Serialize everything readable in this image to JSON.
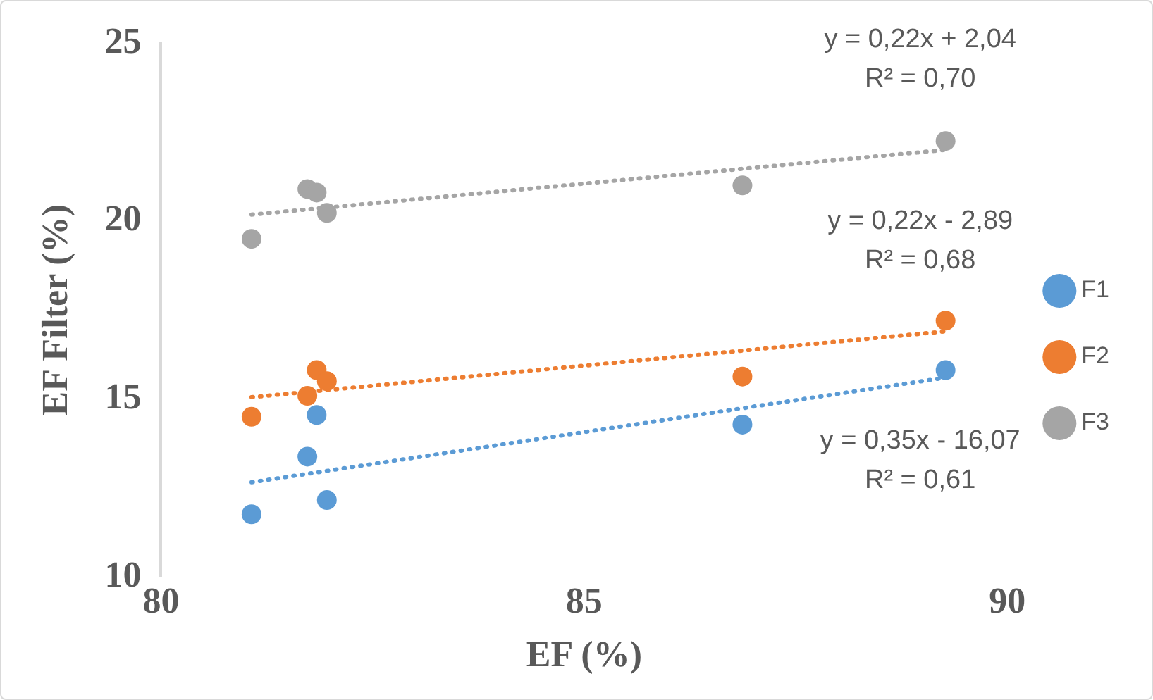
{
  "chart_data": {
    "type": "scatter",
    "xlabel": "EF (%)",
    "ylabel": "EF Filter (%)",
    "xlim": [
      80,
      90
    ],
    "xticks": [
      80,
      85,
      90
    ],
    "ylim": [
      10,
      25
    ],
    "yticks": [
      10,
      15,
      20,
      25
    ],
    "grid": false,
    "legend": "right",
    "marker": "circle",
    "series": [
      {
        "name": "F1",
        "color": "#5b9bd5",
        "x": [
          81.07,
          81.73,
          81.84,
          81.96,
          86.87,
          89.27
        ],
        "values": [
          11.76,
          13.38,
          14.55,
          12.16,
          14.28,
          15.81
        ]
      },
      {
        "name": "F2",
        "color": "#ed7d31",
        "x": [
          81.07,
          81.73,
          81.84,
          81.96,
          86.87,
          89.27
        ],
        "values": [
          14.5,
          15.09,
          15.81,
          15.5,
          15.63,
          17.2
        ]
      },
      {
        "name": "F3",
        "color": "#a5a5a5",
        "x": [
          81.07,
          81.73,
          81.84,
          81.96,
          86.87,
          89.27
        ],
        "values": [
          19.5,
          20.9,
          20.8,
          20.23,
          21.0,
          22.25
        ]
      },
      {
        "type": "line",
        "color": "#5b9bd5",
        "x": [
          81.07,
          89.27
        ],
        "values": [
          12.66,
          15.6
        ],
        "line_style": "dotted",
        "marker": "none"
      },
      {
        "type": "line",
        "color": "#ed7d31",
        "x": [
          81.07,
          89.27
        ],
        "values": [
          15.05,
          16.9
        ],
        "line_style": "dotted",
        "marker": "none"
      },
      {
        "type": "line",
        "color": "#a5a5a5",
        "x": [
          81.07,
          89.27
        ],
        "values": [
          20.18,
          22.0
        ],
        "line_style": "dotted",
        "marker": "none"
      }
    ],
    "annotations": [
      "y = 0,35x - 16,07",
      "R² = 0,61",
      "y = 0,22x - 2,89",
      "R² = 0,68",
      "y = 0,22x + 2,04",
      "R² = 0,70"
    ]
  }
}
